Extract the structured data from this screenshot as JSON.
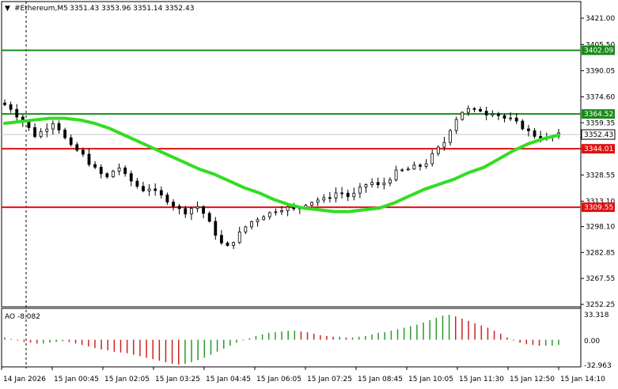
{
  "header": {
    "symbol": "#Ethereum,M5",
    "ohlc": "3351.43 3353.96 3351.14 3352.43"
  },
  "indicator": {
    "label": "AO -8.082",
    "axis_labels": [
      "33.318",
      "0.00",
      "-32.963"
    ]
  },
  "price_axis_labels": [
    "3421.00",
    "3405.50",
    "3390.05",
    "3374.60",
    "3359.35",
    "3344.01",
    "3328.55",
    "3313.10",
    "3298.10",
    "3282.85",
    "3267.55",
    "3252.25"
  ],
  "levels": [
    {
      "value": "3402.09",
      "color": "#1a8a1a"
    },
    {
      "value": "3364.52",
      "color": "#1a8a1a"
    },
    {
      "value": "3344.01",
      "color": "#e01010"
    },
    {
      "value": "3309.55",
      "color": "#e01010"
    }
  ],
  "current_price": "3352.43",
  "time_labels": [
    "14 Jan 2026",
    "15 Jan 00:45",
    "15 Jan 02:05",
    "15 Jan 03:25",
    "15 Jan 04:45",
    "15 Jan 06:05",
    "15 Jan 07:25",
    "15 Jan 08:45",
    "15 Jan 10:05",
    "15 Jan 11:30",
    "15 Jan 12:50",
    "15 Jan 14:10"
  ],
  "colors": {
    "candle": "#000000",
    "ma": "#33dd22",
    "ao_up": "#2a9a2a",
    "ao_down": "#cc2222",
    "support": "#e01010",
    "resistance": "#1a8a1a"
  },
  "chart_data": {
    "type": "candlestick",
    "timeframe": "M5",
    "y_range": [
      3252.25,
      3421.0
    ],
    "price_path": [
      3370,
      3368,
      3364,
      3360,
      3356,
      3352,
      3354,
      3357,
      3360,
      3356,
      3350,
      3345,
      3343,
      3340,
      3336,
      3332,
      3329,
      3327,
      3331,
      3333,
      3328,
      3325,
      3322,
      3320,
      3321,
      3318,
      3316,
      3314,
      3311,
      3308,
      3307,
      3309,
      3310,
      3306,
      3300,
      3294,
      3288,
      3286,
      3290,
      3294,
      3298,
      3301,
      3303,
      3305,
      3306,
      3308,
      3309,
      3309,
      3308,
      3310,
      3312,
      3313,
      3314,
      3314,
      3316,
      3318,
      3318,
      3316,
      3317,
      3320,
      3323,
      3324,
      3322,
      3324,
      3327,
      3330,
      3331,
      3332,
      3333,
      3334,
      3336,
      3340,
      3344,
      3348,
      3356,
      3362,
      3366,
      3367,
      3366,
      3367,
      3365,
      3366,
      3364,
      3362,
      3361,
      3359,
      3357,
      3354,
      3352,
      3351,
      3350,
      3351,
      3352
    ],
    "ma_path": [
      3359,
      3360,
      3361,
      3362,
      3362,
      3361,
      3359,
      3356,
      3352,
      3348,
      3344,
      3340,
      3336,
      3332,
      3329,
      3325,
      3321,
      3318,
      3314,
      3311,
      3309,
      3308,
      3307,
      3307,
      3308,
      3309,
      3312,
      3316,
      3320,
      3323,
      3326,
      3330,
      3333,
      3338,
      3343,
      3347,
      3350,
      3352
    ],
    "ma_start_index": 0,
    "ma_step": 2.5,
    "ao_range": [
      -32.963,
      33.318
    ],
    "ao_values": [
      3,
      1,
      -1,
      -3,
      -4,
      -5,
      -5,
      -4,
      -3,
      -2,
      -3,
      -5,
      -7,
      -9,
      -11,
      -13,
      -14,
      -16,
      -17,
      -18,
      -20,
      -22,
      -24,
      -26,
      -28,
      -30,
      -32,
      -33,
      -32,
      -30,
      -27,
      -24,
      -20,
      -16,
      -12,
      -8,
      -4,
      -1,
      2,
      5,
      7,
      9,
      10,
      11,
      12,
      12,
      11,
      10,
      8,
      6,
      5,
      4,
      4,
      3,
      3,
      4,
      5,
      7,
      9,
      10,
      12,
      14,
      16,
      18,
      20,
      23,
      26,
      29,
      32,
      33,
      31,
      28,
      25,
      22,
      19,
      16,
      12,
      8,
      3,
      -1,
      -4,
      -6,
      -7,
      -8,
      -8,
      -8,
      -7
    ]
  }
}
